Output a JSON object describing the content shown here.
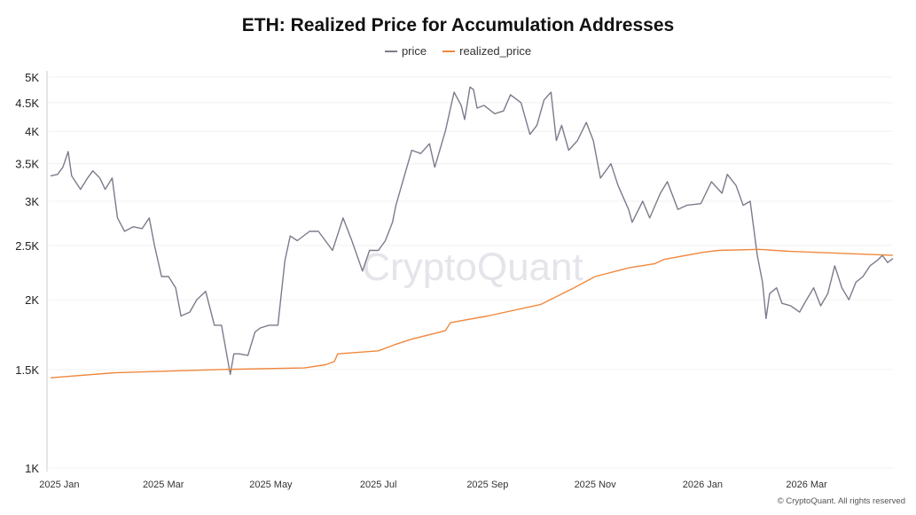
{
  "chart_data": {
    "type": "line",
    "title": "ETH: Realized Price for Accumulation Addresses",
    "y_scale": "log",
    "ylim": [
      1000,
      5000
    ],
    "y_ticks": [
      1000,
      1500,
      2000,
      2500,
      3000,
      3500,
      4000,
      4500,
      5000
    ],
    "y_tick_labels": [
      "1K",
      "1.5K",
      "2K",
      "2.5K",
      "3K",
      "3.5K",
      "4K",
      "4.5K",
      "5K"
    ],
    "x_tick_dates": [
      "2025-01-01",
      "2025-03-01",
      "2025-05-01",
      "2025-07-01",
      "2025-09-01",
      "2025-11-01",
      "2026-01-01",
      "2026-03-01"
    ],
    "x_tick_labels": [
      "2025 Jan",
      "2025 Mar",
      "2025 May",
      "2025 Jul",
      "2025 Sep",
      "2025 Nov",
      "2026 Jan",
      "2026 Mar"
    ],
    "xlim": [
      "2024-12-26",
      "2026-04-19"
    ],
    "grid": true,
    "legend_placement": "top-center",
    "series": [
      {
        "name": "price",
        "color": "#7b7c8c",
        "points": [
          [
            "2024-12-27",
            3330
          ],
          [
            "2024-12-31",
            3350
          ],
          [
            "2025-01-03",
            3450
          ],
          [
            "2025-01-06",
            3680
          ],
          [
            "2025-01-08",
            3330
          ],
          [
            "2025-01-13",
            3150
          ],
          [
            "2025-01-17",
            3300
          ],
          [
            "2025-01-20",
            3400
          ],
          [
            "2025-01-24",
            3300
          ],
          [
            "2025-01-27",
            3150
          ],
          [
            "2025-01-31",
            3300
          ],
          [
            "2025-02-03",
            2800
          ],
          [
            "2025-02-07",
            2650
          ],
          [
            "2025-02-12",
            2700
          ],
          [
            "2025-02-17",
            2680
          ],
          [
            "2025-02-21",
            2800
          ],
          [
            "2025-02-24",
            2500
          ],
          [
            "2025-02-28",
            2200
          ],
          [
            "2025-03-04",
            2200
          ],
          [
            "2025-03-08",
            2100
          ],
          [
            "2025-03-11",
            1870
          ],
          [
            "2025-03-16",
            1900
          ],
          [
            "2025-03-20",
            2000
          ],
          [
            "2025-03-25",
            2070
          ],
          [
            "2025-03-30",
            1800
          ],
          [
            "2025-04-03",
            1800
          ],
          [
            "2025-04-08",
            1470
          ],
          [
            "2025-04-10",
            1600
          ],
          [
            "2025-04-13",
            1600
          ],
          [
            "2025-04-18",
            1590
          ],
          [
            "2025-04-22",
            1750
          ],
          [
            "2025-04-25",
            1780
          ],
          [
            "2025-04-30",
            1800
          ],
          [
            "2025-05-05",
            1800
          ],
          [
            "2025-05-09",
            2350
          ],
          [
            "2025-05-12",
            2600
          ],
          [
            "2025-05-16",
            2550
          ],
          [
            "2025-05-23",
            2650
          ],
          [
            "2025-05-28",
            2650
          ],
          [
            "2025-06-05",
            2450
          ],
          [
            "2025-06-11",
            2800
          ],
          [
            "2025-06-16",
            2550
          ],
          [
            "2025-06-22",
            2250
          ],
          [
            "2025-06-26",
            2450
          ],
          [
            "2025-07-01",
            2450
          ],
          [
            "2025-07-05",
            2550
          ],
          [
            "2025-07-09",
            2750
          ],
          [
            "2025-07-11",
            2950
          ],
          [
            "2025-07-16",
            3350
          ],
          [
            "2025-07-20",
            3700
          ],
          [
            "2025-07-25",
            3650
          ],
          [
            "2025-07-30",
            3800
          ],
          [
            "2025-08-02",
            3450
          ],
          [
            "2025-08-08",
            4000
          ],
          [
            "2025-08-13",
            4700
          ],
          [
            "2025-08-17",
            4450
          ],
          [
            "2025-08-19",
            4200
          ],
          [
            "2025-08-22",
            4800
          ],
          [
            "2025-08-24",
            4750
          ],
          [
            "2025-08-26",
            4400
          ],
          [
            "2025-08-30",
            4450
          ],
          [
            "2025-09-05",
            4300
          ],
          [
            "2025-09-10",
            4350
          ],
          [
            "2025-09-14",
            4650
          ],
          [
            "2025-09-20",
            4500
          ],
          [
            "2025-09-25",
            3950
          ],
          [
            "2025-09-29",
            4100
          ],
          [
            "2025-10-03",
            4550
          ],
          [
            "2025-10-07",
            4700
          ],
          [
            "2025-10-10",
            3850
          ],
          [
            "2025-10-13",
            4100
          ],
          [
            "2025-10-17",
            3700
          ],
          [
            "2025-10-22",
            3850
          ],
          [
            "2025-10-27",
            4150
          ],
          [
            "2025-10-31",
            3850
          ],
          [
            "2025-11-04",
            3300
          ],
          [
            "2025-11-10",
            3500
          ],
          [
            "2025-11-14",
            3200
          ],
          [
            "2025-11-20",
            2900
          ],
          [
            "2025-11-22",
            2750
          ],
          [
            "2025-11-28",
            3000
          ],
          [
            "2025-12-02",
            2800
          ],
          [
            "2025-12-08",
            3100
          ],
          [
            "2025-12-12",
            3250
          ],
          [
            "2025-12-18",
            2900
          ],
          [
            "2025-12-23",
            2950
          ],
          [
            "2025-12-31",
            2970
          ],
          [
            "2026-01-06",
            3250
          ],
          [
            "2026-01-12",
            3100
          ],
          [
            "2026-01-15",
            3350
          ],
          [
            "2026-01-20",
            3200
          ],
          [
            "2026-01-24",
            2950
          ],
          [
            "2026-01-28",
            3000
          ],
          [
            "2026-02-01",
            2400
          ],
          [
            "2026-02-04",
            2150
          ],
          [
            "2026-02-06",
            1850
          ],
          [
            "2026-02-08",
            2050
          ],
          [
            "2026-02-12",
            2100
          ],
          [
            "2026-02-15",
            1970
          ],
          [
            "2026-02-20",
            1950
          ],
          [
            "2026-02-25",
            1900
          ],
          [
            "2026-03-01",
            2000
          ],
          [
            "2026-03-05",
            2100
          ],
          [
            "2026-03-09",
            1950
          ],
          [
            "2026-03-13",
            2050
          ],
          [
            "2026-03-17",
            2300
          ],
          [
            "2026-03-21",
            2100
          ],
          [
            "2026-03-25",
            2000
          ],
          [
            "2026-03-29",
            2150
          ],
          [
            "2026-04-02",
            2200
          ],
          [
            "2026-04-06",
            2300
          ],
          [
            "2026-04-10",
            2350
          ],
          [
            "2026-04-13",
            2400
          ],
          [
            "2026-04-16",
            2330
          ],
          [
            "2026-04-19",
            2370
          ]
        ]
      },
      {
        "name": "realized_price",
        "color": "#f0883e",
        "points": [
          [
            "2024-12-27",
            1450
          ],
          [
            "2025-02-01",
            1480
          ],
          [
            "2025-04-01",
            1500
          ],
          [
            "2025-05-20",
            1510
          ],
          [
            "2025-06-01",
            1530
          ],
          [
            "2025-06-06",
            1550
          ],
          [
            "2025-06-08",
            1600
          ],
          [
            "2025-07-01",
            1620
          ],
          [
            "2025-07-10",
            1660
          ],
          [
            "2025-07-20",
            1700
          ],
          [
            "2025-08-08",
            1760
          ],
          [
            "2025-08-11",
            1820
          ],
          [
            "2025-09-01",
            1870
          ],
          [
            "2025-10-01",
            1960
          ],
          [
            "2025-10-20",
            2100
          ],
          [
            "2025-11-01",
            2200
          ],
          [
            "2025-11-20",
            2280
          ],
          [
            "2025-12-05",
            2320
          ],
          [
            "2025-12-10",
            2360
          ],
          [
            "2026-01-01",
            2430
          ],
          [
            "2026-01-10",
            2450
          ],
          [
            "2026-02-02",
            2460
          ],
          [
            "2026-02-20",
            2440
          ],
          [
            "2026-04-19",
            2400
          ]
        ]
      }
    ]
  },
  "watermark": "CryptoQuant",
  "footer": "© CryptoQuant. All rights reserved"
}
